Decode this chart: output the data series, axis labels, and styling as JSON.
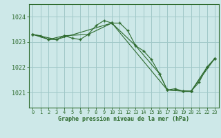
{
  "background_color": "#cde8e8",
  "grid_color": "#a0c8c8",
  "line_color": "#2d6a2d",
  "spine_color": "#2d6a2d",
  "title": "Graphe pression niveau de la mer (hPa)",
  "xlim": [
    -0.5,
    23.5
  ],
  "ylim": [
    1020.4,
    1024.5
  ],
  "yticks": [
    1021,
    1022,
    1023,
    1024
  ],
  "xticks": [
    0,
    1,
    2,
    3,
    4,
    5,
    6,
    7,
    8,
    9,
    10,
    11,
    12,
    13,
    14,
    15,
    16,
    17,
    18,
    19,
    20,
    21,
    22,
    23
  ],
  "series": [
    {
      "x": [
        0,
        1,
        2,
        3,
        4,
        5,
        6,
        7,
        8,
        9,
        10,
        11,
        12,
        13,
        14,
        15,
        16,
        17,
        18,
        19,
        20,
        21,
        22,
        23
      ],
      "y": [
        1023.3,
        1023.25,
        1023.1,
        1023.1,
        1023.25,
        1023.15,
        1023.1,
        1023.3,
        1023.65,
        1023.85,
        1023.75,
        1023.75,
        1023.45,
        1022.85,
        1022.65,
        1022.3,
        1021.75,
        1021.1,
        1021.15,
        1021.05,
        1021.05,
        1021.4,
        1022.0,
        1022.35
      ]
    },
    {
      "x": [
        0,
        2,
        4,
        7,
        10,
        13,
        16,
        17,
        19,
        20,
        22,
        23
      ],
      "y": [
        1023.3,
        1023.1,
        1023.25,
        1023.3,
        1023.75,
        1022.85,
        1021.75,
        1021.1,
        1021.05,
        1021.05,
        1022.0,
        1022.35
      ]
    },
    {
      "x": [
        0,
        3,
        10,
        17,
        20,
        23
      ],
      "y": [
        1023.3,
        1023.1,
        1023.75,
        1021.1,
        1021.05,
        1022.35
      ]
    }
  ]
}
